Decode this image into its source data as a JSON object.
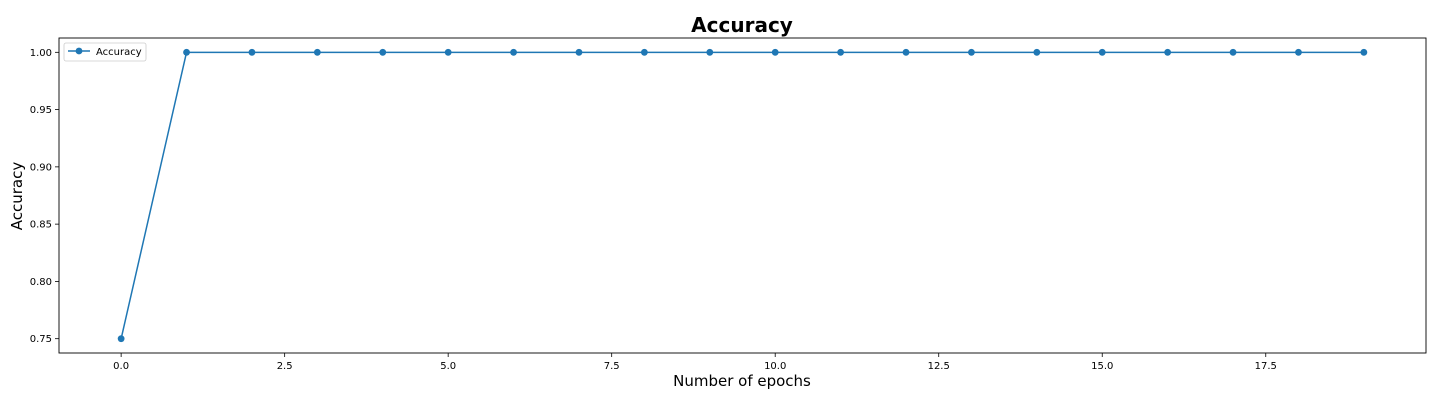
{
  "chart_data": {
    "type": "line",
    "title": "Accuracy",
    "xlabel": "Number of epochs",
    "ylabel": "Accuracy",
    "xlim": [
      -0.95,
      19.95
    ],
    "ylim": [
      0.7375,
      1.0125
    ],
    "xticks": [
      0.0,
      2.5,
      5.0,
      7.5,
      10.0,
      12.5,
      15.0,
      17.5
    ],
    "xtick_labels": [
      "0.0",
      "2.5",
      "5.0",
      "7.5",
      "10.0",
      "12.5",
      "15.0",
      "17.5"
    ],
    "yticks": [
      0.75,
      0.8,
      0.85,
      0.9,
      0.95,
      1.0
    ],
    "ytick_labels": [
      "0.75",
      "0.80",
      "0.85",
      "0.90",
      "0.95",
      "1.00"
    ],
    "grid": false,
    "legend_position": "top-left",
    "series": [
      {
        "name": "Accuracy",
        "color": "#1f77b4",
        "marker": "circle",
        "x": [
          0,
          1,
          2,
          3,
          4,
          5,
          6,
          7,
          8,
          9,
          10,
          11,
          12,
          13,
          14,
          15,
          16,
          17,
          18,
          19
        ],
        "y": [
          0.75,
          1.0,
          1.0,
          1.0,
          1.0,
          1.0,
          1.0,
          1.0,
          1.0,
          1.0,
          1.0,
          1.0,
          1.0,
          1.0,
          1.0,
          1.0,
          1.0,
          1.0,
          1.0,
          1.0
        ]
      }
    ]
  }
}
